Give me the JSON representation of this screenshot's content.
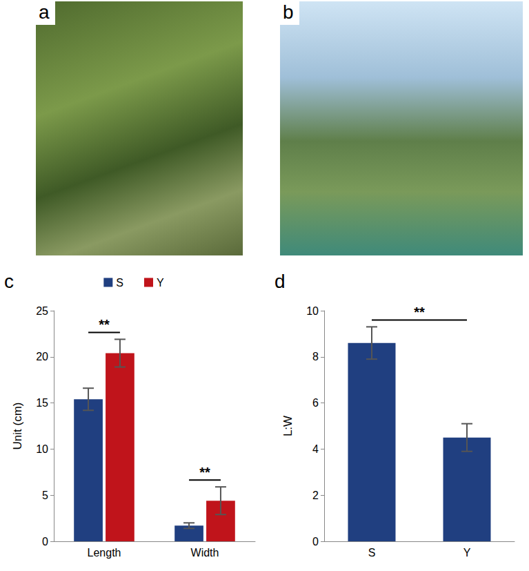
{
  "images": [
    {
      "label": "a"
    },
    {
      "label": "b"
    }
  ],
  "chart_data": [
    {
      "type": "bar",
      "panel": "c",
      "ylabel": "Unit (cm)",
      "categories": [
        "Length",
        "Width"
      ],
      "series": [
        {
          "name": "S",
          "color": "#203f80",
          "values": [
            15.4,
            1.7
          ],
          "errors": [
            1.2,
            0.3
          ]
        },
        {
          "name": "Y",
          "color": "#c0141b",
          "values": [
            20.4,
            4.4
          ],
          "errors": [
            1.5,
            1.5
          ]
        }
      ],
      "ylim": [
        0,
        25
      ],
      "yticks": [
        0,
        5,
        10,
        15,
        20,
        25
      ],
      "grid": false,
      "legend": "top",
      "annotations": [
        {
          "text": "**",
          "category": "Length"
        },
        {
          "text": "**",
          "category": "Width"
        }
      ]
    },
    {
      "type": "bar",
      "panel": "d",
      "ylabel": "L:W",
      "categories": [
        "S",
        "Y"
      ],
      "values": [
        8.6,
        4.5
      ],
      "errors": [
        0.7,
        0.6
      ],
      "color": "#203f80",
      "ylim": [
        0,
        10
      ],
      "yticks": [
        0,
        2,
        4,
        6,
        8,
        10
      ],
      "grid": false,
      "annotations": [
        {
          "text": "**",
          "categories": [
            "S",
            "Y"
          ]
        }
      ]
    }
  ]
}
